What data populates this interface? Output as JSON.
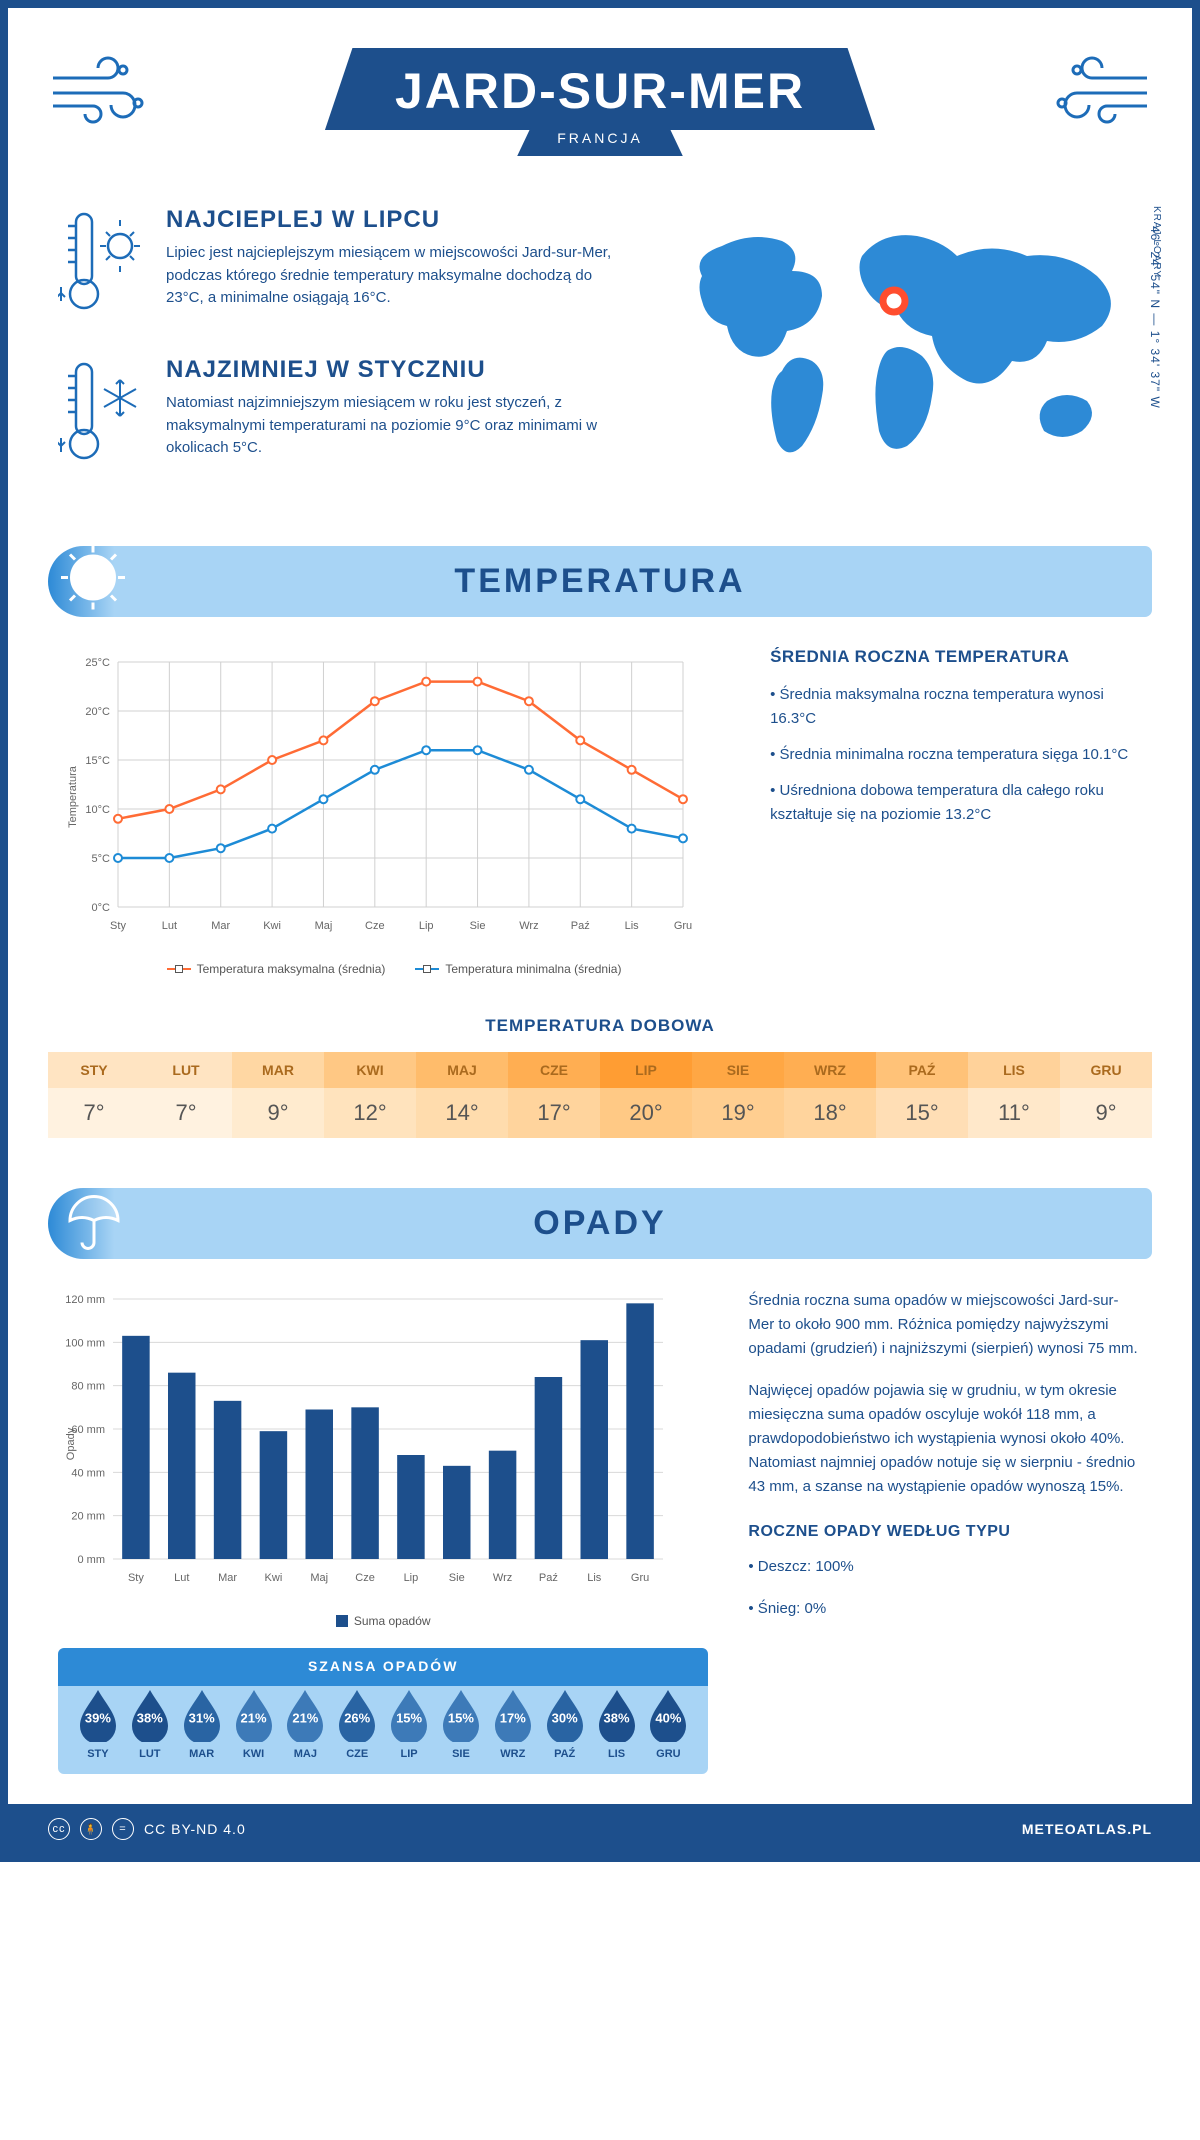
{
  "header": {
    "city": "JARD-SUR-MER",
    "country": "FRANCJA"
  },
  "coords": "46° 24' 54\" N — 1° 34' 37\" W",
  "region": "KRAJ LOARY",
  "facts": {
    "warm": {
      "title": "NAJCIEPLEJ W LIPCU",
      "text": "Lipiec jest najcieplejszym miesiącem w miejscowości Jard-sur-Mer, podczas którego średnie temperatury maksymalne dochodzą do 23°C, a minimalne osiągają 16°C."
    },
    "cold": {
      "title": "NAJZIMNIEJ W STYCZNIU",
      "text": "Natomiast najzimniejszym miesiącem w roku jest styczeń, z maksymalnymi temperaturami na poziomie 9°C oraz minimami w okolicach 5°C."
    }
  },
  "temperature_section": {
    "title": "TEMPERATURA",
    "avg_title": "ŚREDNIA ROCZNA TEMPERATURA",
    "bullets": [
      "• Średnia maksymalna roczna temperatura wynosi 16.3°C",
      "• Średnia minimalna roczna temperatura sięga 10.1°C",
      "• Uśredniona dobowa temperatura dla całego roku kształtuje się na poziomie 13.2°C"
    ],
    "chart": {
      "type": "line",
      "months": [
        "Sty",
        "Lut",
        "Mar",
        "Kwi",
        "Maj",
        "Cze",
        "Lip",
        "Sie",
        "Wrz",
        "Paź",
        "Lis",
        "Gru"
      ],
      "max_series": [
        9,
        10,
        12,
        15,
        17,
        21,
        23,
        23,
        21,
        17,
        14,
        11
      ],
      "min_series": [
        5,
        5,
        6,
        8,
        11,
        14,
        16,
        16,
        14,
        11,
        8,
        7
      ],
      "max_color": "#ff6b35",
      "min_color": "#1d8bd6",
      "ylabel": "Temperatura",
      "ylim": [
        0,
        25
      ],
      "ytick_step": 5,
      "grid_color": "#d0d0d0",
      "background": "#ffffff",
      "legend_max": "Temperatura maksymalna (średnia)",
      "legend_min": "Temperatura minimalna (średnia)"
    },
    "daily_title": "TEMPERATURA DOBOWA",
    "daily_table": {
      "months": [
        "STY",
        "LUT",
        "MAR",
        "KWI",
        "MAJ",
        "CZE",
        "LIP",
        "SIE",
        "WRZ",
        "PAŹ",
        "LIS",
        "GRU"
      ],
      "values": [
        "7°",
        "7°",
        "9°",
        "12°",
        "14°",
        "17°",
        "20°",
        "19°",
        "18°",
        "15°",
        "11°",
        "9°"
      ],
      "head_colors": [
        "#ffe4c2",
        "#ffe4c2",
        "#ffd7a3",
        "#ffc884",
        "#ffbc6b",
        "#ffae52",
        "#ff9d33",
        "#ffa744",
        "#ffae52",
        "#ffc278",
        "#ffd29a",
        "#ffddb3"
      ],
      "val_colors": [
        "#fff2e0",
        "#fff2e0",
        "#ffebcf",
        "#ffe3bd",
        "#ffdcad",
        "#ffd49d",
        "#ffc985",
        "#ffce90",
        "#ffd49d",
        "#ffdeb5",
        "#ffe8ca",
        "#ffeed8"
      ]
    }
  },
  "precip_section": {
    "title": "OPADY",
    "text1": "Średnia roczna suma opadów w miejscowości Jard-sur-Mer to około 900 mm. Różnica pomiędzy najwyższymi opadami (grudzień) i najniższymi (sierpień) wynosi 75 mm.",
    "text2": "Najwięcej opadów pojawia się w grudniu, w tym okresie miesięczna suma opadów oscyluje wokół 118 mm, a prawdopodobieństwo ich wystąpienia wynosi około 40%. Natomiast najmniej opadów notuje się w sierpniu - średnio 43 mm, a szanse na wystąpienie opadów wynoszą 15%.",
    "type_title": "ROCZNE OPADY WEDŁUG TYPU",
    "type_bullets": [
      "• Deszcz: 100%",
      "• Śnieg: 0%"
    ],
    "chart": {
      "type": "bar",
      "months": [
        "Sty",
        "Lut",
        "Mar",
        "Kwi",
        "Maj",
        "Cze",
        "Lip",
        "Sie",
        "Wrz",
        "Paź",
        "Lis",
        "Gru"
      ],
      "values": [
        103,
        86,
        73,
        59,
        69,
        70,
        48,
        43,
        50,
        84,
        101,
        118
      ],
      "bar_color": "#1d4f8c",
      "ylabel": "Opady",
      "ylim": [
        0,
        120
      ],
      "ytick_step": 20,
      "grid_color": "#d8d8d8",
      "legend": "Suma opadów"
    },
    "chance": {
      "title": "SZANSA OPADÓW",
      "months": [
        "STY",
        "LUT",
        "MAR",
        "KWI",
        "MAJ",
        "CZE",
        "LIP",
        "SIE",
        "WRZ",
        "PAŹ",
        "LIS",
        "GRU"
      ],
      "values": [
        "39%",
        "38%",
        "31%",
        "21%",
        "21%",
        "26%",
        "15%",
        "15%",
        "17%",
        "30%",
        "38%",
        "40%"
      ],
      "drop_color": "#1d4f8c",
      "drop_color_light": "#3d7ab8"
    }
  },
  "footer": {
    "license": "CC BY-ND 4.0",
    "site": "METEOATLAS.PL"
  }
}
